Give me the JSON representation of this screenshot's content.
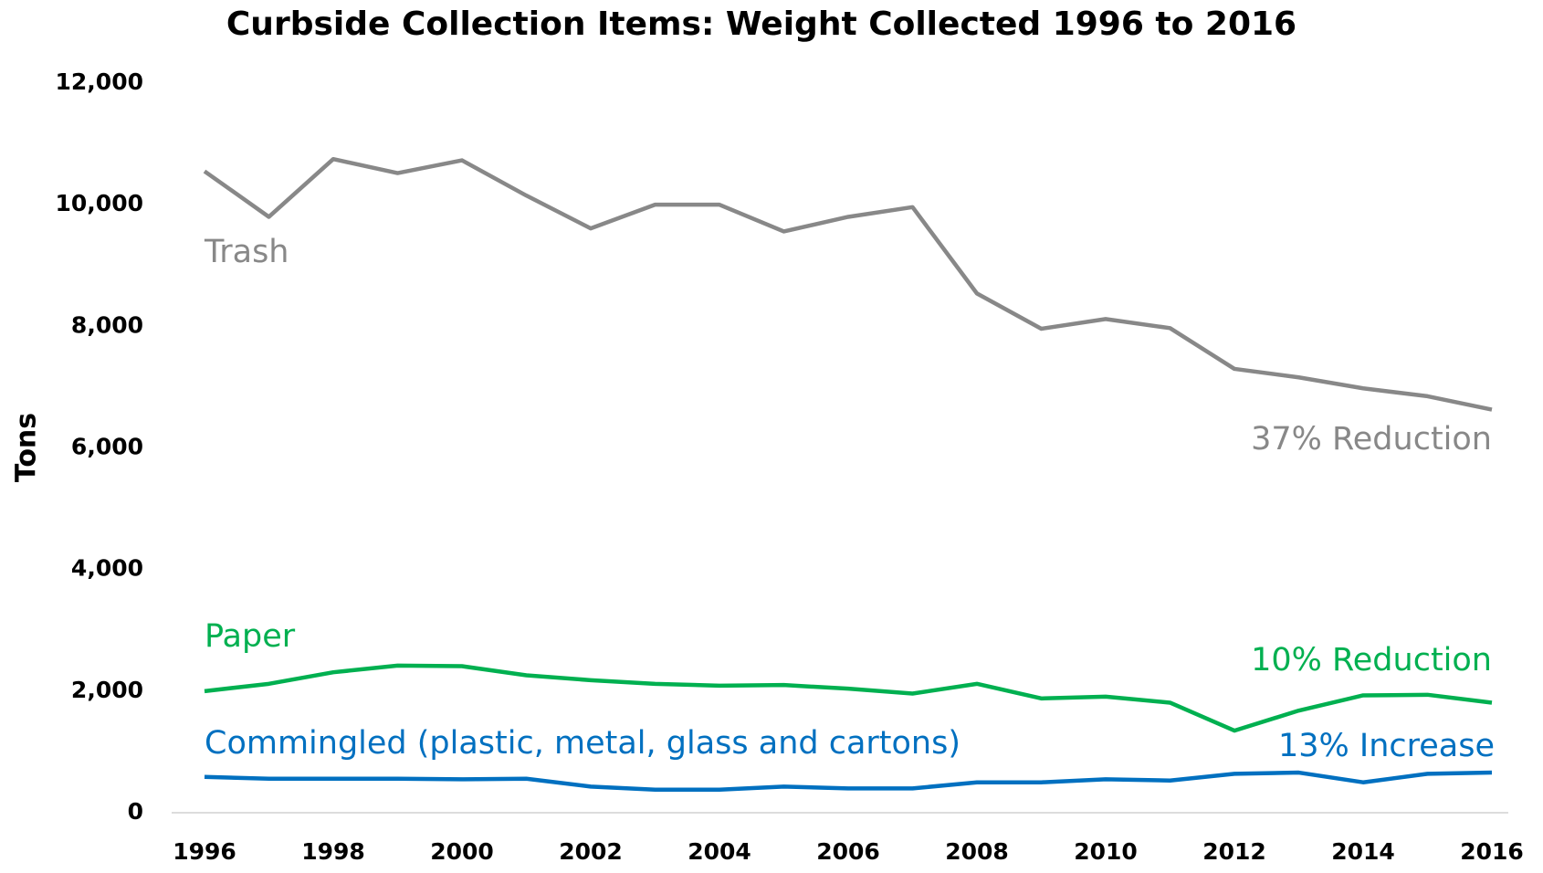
{
  "chart_data": {
    "type": "line",
    "title": "Curbside Collection Items: Weight Collected 1996 to 2016",
    "y_label": "Tons",
    "x": [
      1996,
      1997,
      1998,
      1999,
      2000,
      2001,
      2002,
      2003,
      2004,
      2005,
      2006,
      2007,
      2008,
      2009,
      2010,
      2011,
      2012,
      2013,
      2014,
      2015,
      2016
    ],
    "series": [
      {
        "name": "Trash",
        "color": "#888888",
        "values": [
          10550,
          9800,
          10750,
          10520,
          10730,
          10150,
          9610,
          10000,
          10000,
          9560,
          9800,
          9960,
          8540,
          7960,
          8120,
          7970,
          7300,
          7160,
          6980,
          6850,
          6630
        ]
      },
      {
        "name": "Paper",
        "color": "#00b050",
        "values": [
          2000,
          2120,
          2310,
          2420,
          2410,
          2260,
          2180,
          2120,
          2090,
          2100,
          2040,
          1960,
          2120,
          1880,
          1910,
          1810,
          1350,
          1680,
          1930,
          1940,
          1810
        ]
      },
      {
        "name": "Commingled (plastic, metal, glass and cartons)",
        "color": "#0070c0",
        "values": [
          590,
          560,
          560,
          560,
          550,
          560,
          430,
          380,
          380,
          430,
          400,
          400,
          500,
          500,
          550,
          530,
          640,
          660,
          500,
          640,
          660
        ]
      }
    ],
    "annotations": [
      "37% Reduction",
      "10% Reduction",
      "13% Increase"
    ],
    "xlim": [
      1996,
      2016
    ],
    "xticks": [
      1996,
      1998,
      2000,
      2002,
      2004,
      2006,
      2008,
      2010,
      2012,
      2014,
      2016
    ],
    "ylim": [
      0,
      12000
    ],
    "yticks": [
      0,
      {
        "value": 2000,
        "label": "2,000"
      },
      {
        "value": 4000,
        "label": "4,000"
      },
      {
        "value": 6000,
        "label": "6,000"
      },
      {
        "value": 8000,
        "label": "8,000"
      },
      {
        "value": 10000,
        "label": "10,000"
      },
      {
        "value": 12000,
        "label": "12,000"
      }
    ],
    "grid": false
  }
}
